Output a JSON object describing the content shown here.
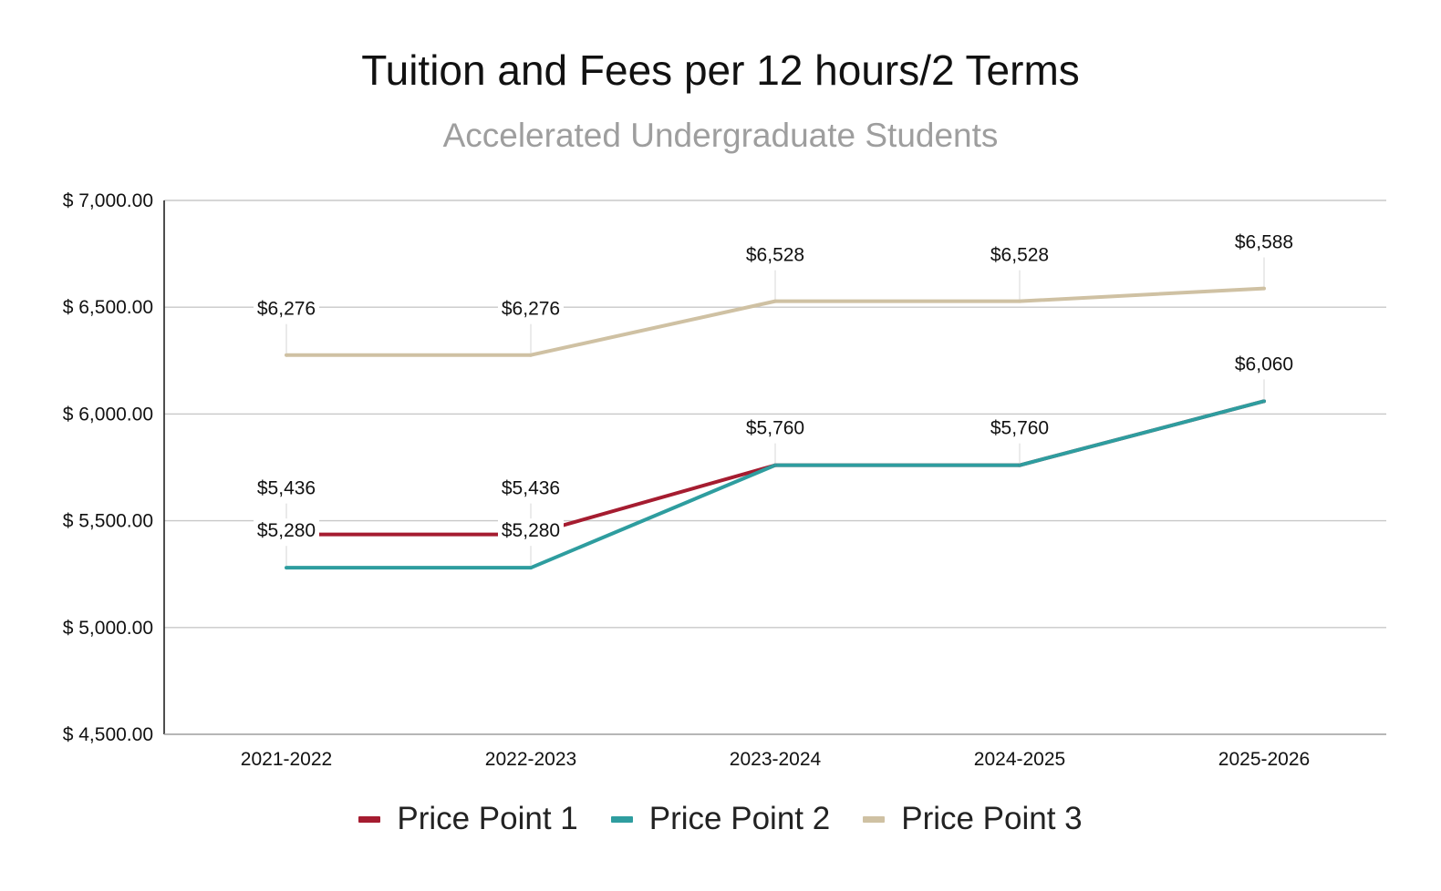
{
  "chart_data": {
    "type": "line",
    "title": "Tuition and Fees per 12 hours/2 Terms",
    "subtitle": "Accelerated Undergraduate Students",
    "categories": [
      "2021-2022",
      "2022-2023",
      "2023-2024",
      "2024-2025",
      "2025-2026"
    ],
    "ylim": [
      4500,
      7000
    ],
    "yticks": [
      {
        "value": 4500,
        "label": "$ 4,500.00"
      },
      {
        "value": 5000,
        "label": "$ 5,000.00"
      },
      {
        "value": 5500,
        "label": "$ 5,500.00"
      },
      {
        "value": 6000,
        "label": "$ 6,000.00"
      },
      {
        "value": 6500,
        "label": "$ 6,500.00"
      },
      {
        "value": 7000,
        "label": "$ 7,000.00"
      }
    ],
    "grid": true,
    "legend_position": "bottom",
    "series": [
      {
        "name": "Price Point 1",
        "color": "#a51c30",
        "values": [
          5436,
          5436,
          5760,
          5760,
          6060
        ],
        "labels": [
          "$5,436",
          "$5,436",
          "",
          "",
          ""
        ]
      },
      {
        "name": "Price Point 2",
        "color": "#2e9d9f",
        "values": [
          5280,
          5280,
          5760,
          5760,
          6060
        ],
        "labels": [
          "$5,280",
          "$5,280",
          "$5,760",
          "$5,760",
          "$6,060"
        ]
      },
      {
        "name": "Price Point 3",
        "color": "#cfc1a3",
        "values": [
          6276,
          6276,
          6528,
          6528,
          6588
        ],
        "labels": [
          "$6,276",
          "$6,276",
          "$6,528",
          "$6,528",
          "$6,588"
        ]
      }
    ]
  }
}
